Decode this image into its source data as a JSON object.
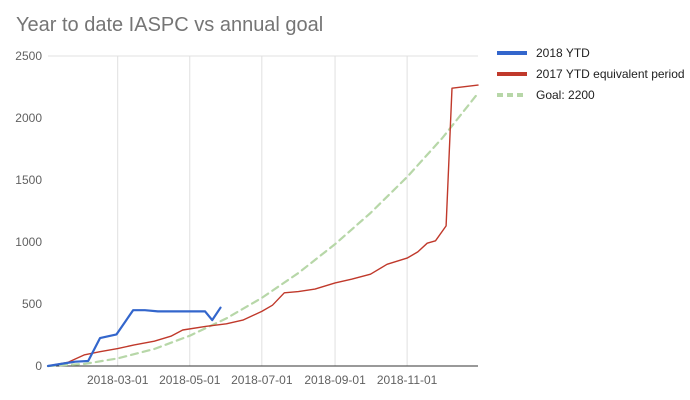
{
  "chart_data": {
    "type": "line",
    "title": "Year to date IASPC vs annual goal",
    "xlabel": "",
    "ylabel": "",
    "x_ticks": [
      "2018-03-01",
      "2018-05-01",
      "2018-07-01",
      "2018-09-01",
      "2018-11-01"
    ],
    "y_ticks": [
      0,
      500,
      1000,
      1500,
      2000,
      2500
    ],
    "xlim": [
      "2018-01-01",
      "2018-12-31"
    ],
    "ylim": [
      0,
      2500
    ],
    "grid": "vertical",
    "legend_position": "right",
    "series": [
      {
        "name": "2018 YTD",
        "color": "#3366cc",
        "dash": "solid",
        "points": [
          [
            "2018-01-01",
            0
          ],
          [
            "2018-01-14",
            20
          ],
          [
            "2018-01-24",
            35
          ],
          [
            "2018-02-04",
            40
          ],
          [
            "2018-02-14",
            225
          ],
          [
            "2018-02-28",
            255
          ],
          [
            "2018-03-14",
            450
          ],
          [
            "2018-03-24",
            450
          ],
          [
            "2018-04-04",
            440
          ],
          [
            "2018-05-04",
            440
          ],
          [
            "2018-05-14",
            440
          ],
          [
            "2018-05-20",
            370
          ],
          [
            "2018-05-27",
            470
          ]
        ]
      },
      {
        "name": "2017 YTD equivalent period",
        "color": "#c0392b",
        "dash": "solid",
        "points": [
          [
            "2018-01-01",
            0
          ],
          [
            "2018-01-18",
            30
          ],
          [
            "2018-02-01",
            90
          ],
          [
            "2018-02-14",
            115
          ],
          [
            "2018-03-01",
            140
          ],
          [
            "2018-03-15",
            170
          ],
          [
            "2018-04-01",
            200
          ],
          [
            "2018-04-15",
            240
          ],
          [
            "2018-04-25",
            290
          ],
          [
            "2018-05-15",
            320
          ],
          [
            "2018-06-01",
            340
          ],
          [
            "2018-06-15",
            370
          ],
          [
            "2018-07-01",
            440
          ],
          [
            "2018-07-10",
            490
          ],
          [
            "2018-07-20",
            590
          ],
          [
            "2018-08-01",
            600
          ],
          [
            "2018-08-15",
            620
          ],
          [
            "2018-09-01",
            670
          ],
          [
            "2018-09-15",
            700
          ],
          [
            "2018-10-01",
            740
          ],
          [
            "2018-10-15",
            820
          ],
          [
            "2018-11-01",
            870
          ],
          [
            "2018-11-10",
            920
          ],
          [
            "2018-11-18",
            990
          ],
          [
            "2018-11-25",
            1010
          ],
          [
            "2018-12-04",
            1130
          ],
          [
            "2018-12-09",
            2240
          ],
          [
            "2018-12-31",
            2265
          ]
        ]
      },
      {
        "name": "Goal: 2200",
        "color": "#b7d7a8",
        "dash": "dashed",
        "points": [
          [
            "2018-01-01",
            0
          ],
          [
            "2018-02-01",
            17
          ],
          [
            "2018-03-01",
            61
          ],
          [
            "2018-04-01",
            137
          ],
          [
            "2018-05-01",
            244
          ],
          [
            "2018-06-01",
            384
          ],
          [
            "2018-07-01",
            549
          ],
          [
            "2018-08-01",
            750
          ],
          [
            "2018-09-01",
            983
          ],
          [
            "2018-10-01",
            1234
          ],
          [
            "2018-11-01",
            1524
          ],
          [
            "2018-12-01",
            1841
          ],
          [
            "2018-12-31",
            2200
          ]
        ]
      }
    ]
  }
}
